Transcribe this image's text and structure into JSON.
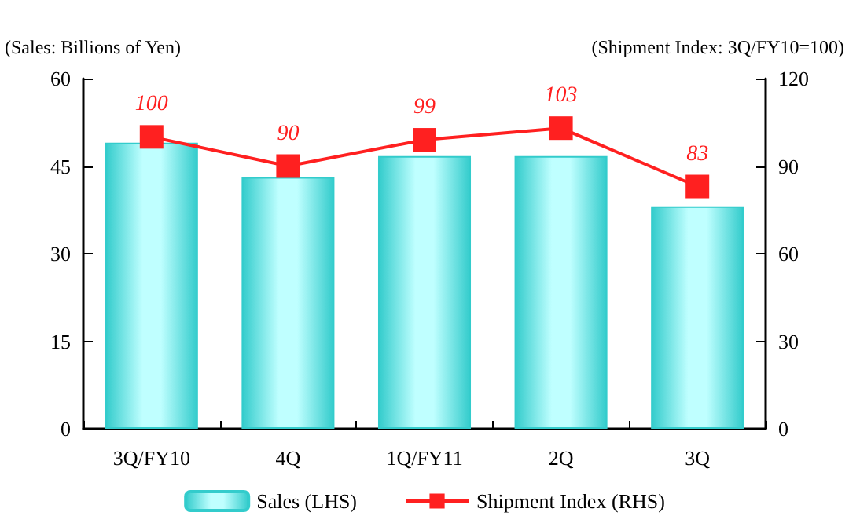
{
  "chart_data": {
    "type": "bar",
    "ylabel": "(Sales: Billions of Yen)",
    "y2label": "(Shipment Index: 3Q/FY10=100)",
    "categories": [
      "3Q/FY10",
      "4Q",
      "1Q/FY11",
      "2Q",
      "3Q"
    ],
    "series": [
      {
        "name": "Sales (LHS)",
        "color": "#33cccc",
        "values": [
          49,
          43.1,
          46.7,
          46.7,
          38.1
        ]
      },
      {
        "name": "Shipment Index (RHS)",
        "type": "line",
        "axis": "y2",
        "color": "#ff2020",
        "marker": "square",
        "values": [
          100,
          90,
          99,
          103,
          83
        ],
        "value_labels": [
          "100",
          "90",
          "99",
          "103",
          "83"
        ]
      }
    ],
    "ylim": [
      0,
      60
    ],
    "yticks": [
      0,
      15,
      30,
      45,
      60
    ],
    "y2lim": [
      0,
      120
    ],
    "y2ticks": [
      0,
      30,
      60,
      90,
      120
    ],
    "grid": false,
    "legend": "bottom"
  }
}
